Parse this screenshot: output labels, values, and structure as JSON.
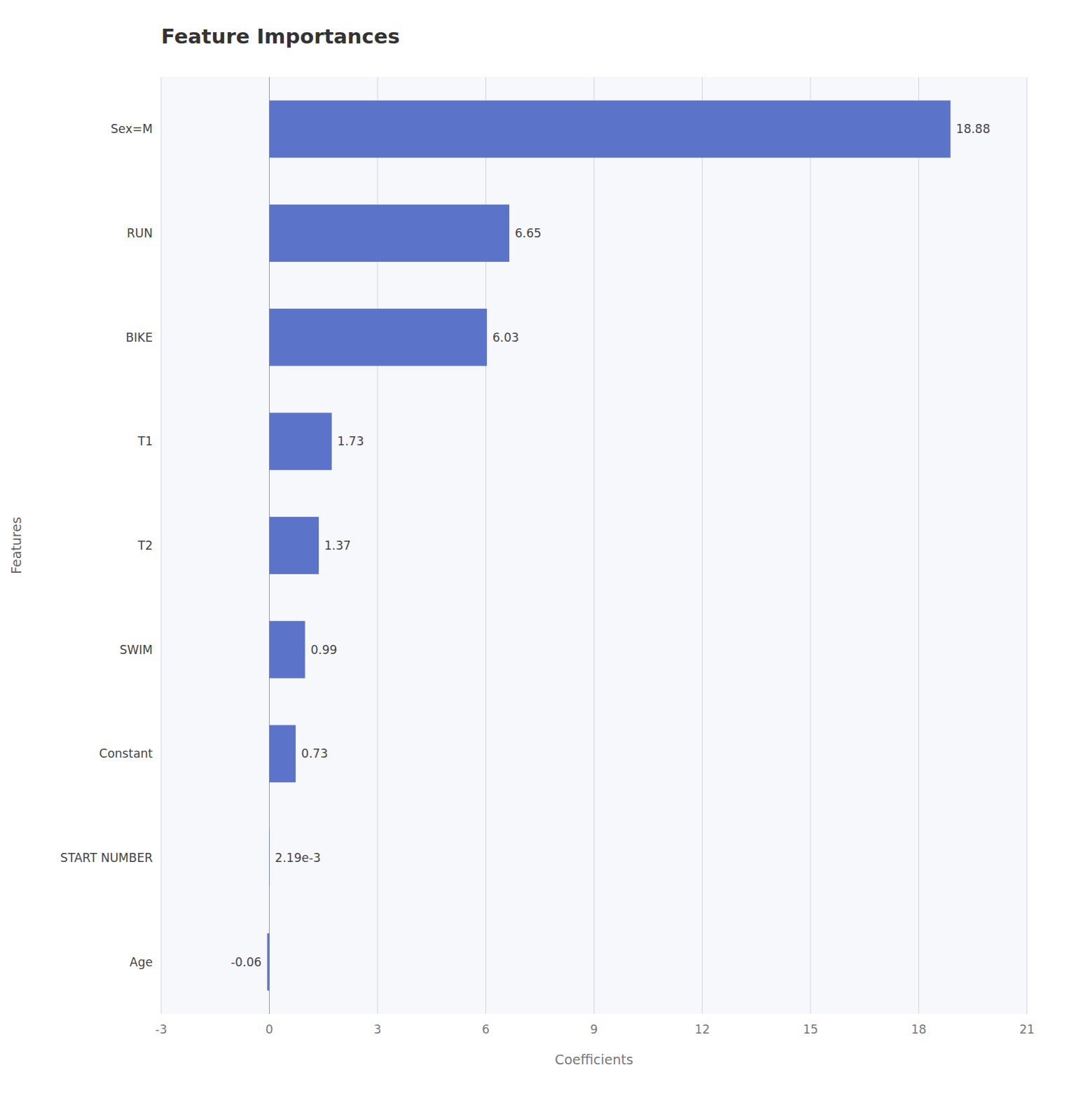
{
  "chart_data": {
    "type": "bar",
    "orientation": "horizontal",
    "title": "Feature Importances",
    "categories": [
      "Sex=M",
      "RUN",
      "BIKE",
      "T1",
      "T2",
      "SWIM",
      "Constant",
      "START NUMBER",
      "Age"
    ],
    "values": [
      18.88,
      6.65,
      6.03,
      1.73,
      1.37,
      0.99,
      0.73,
      0.00219,
      -0.06
    ],
    "value_labels": [
      "18.88",
      "6.65",
      "6.03",
      "1.73",
      "1.37",
      "0.99",
      "0.73",
      "2.19e-3",
      "-0.06"
    ],
    "data_labels": true,
    "color": "#5b73c9",
    "xlabel": "Coefficients",
    "ylabel": "Features",
    "xlim": [
      -3,
      21
    ],
    "xticks": [
      -3,
      0,
      3,
      6,
      9,
      12,
      15,
      18,
      21
    ],
    "grid": true
  }
}
